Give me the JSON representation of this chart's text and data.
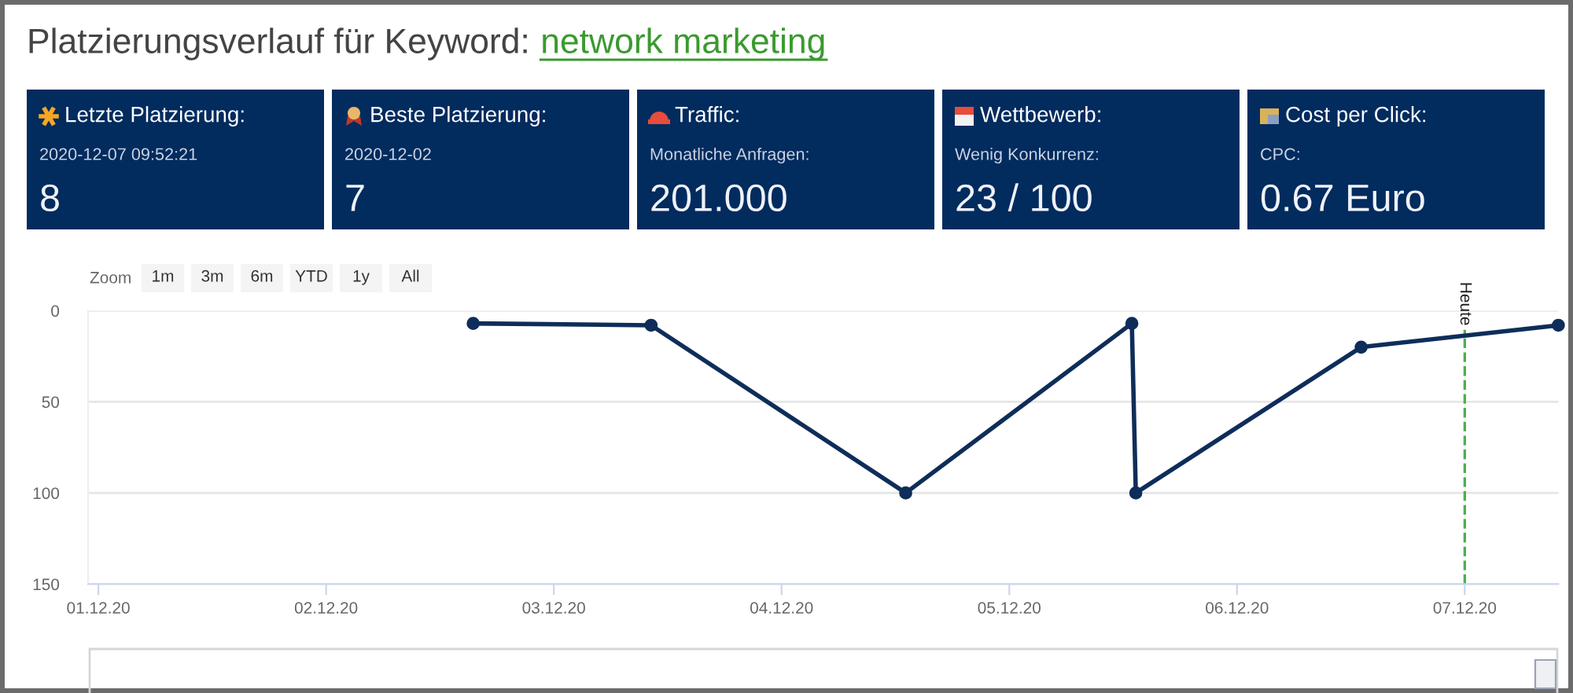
{
  "chart_data": [
    {
      "type": "other",
      "title": "Platzierungsverlauf für Keyword:",
      "subtitle": "network marketing"
    },
    {
      "type": "other",
      "title": "Letzte Platzierung:",
      "subtitle": "2020-12-07 09:52:21",
      "annotations": [
        "8"
      ]
    },
    {
      "type": "other",
      "title": "Beste Platzierung:",
      "subtitle": "2020-12-02",
      "annotations": [
        "7"
      ]
    },
    {
      "type": "other",
      "title": "Traffic:",
      "subtitle": "Monatliche Anfragen:",
      "annotations": [
        "201.000"
      ]
    },
    {
      "type": "other",
      "title": "Wettbewerb:",
      "subtitle": "Wenig Konkurrenz:",
      "annotations": [
        "23 / 100"
      ]
    },
    {
      "type": "other",
      "title": "Cost per Click:",
      "subtitle": "CPC:",
      "annotations": [
        "0.67 Euro"
      ]
    },
    {
      "type": "line",
      "x": [
        "2020-12-02T15:30",
        "2020-12-03T10:15",
        "2020-12-04T13:05",
        "2020-12-05T12:55",
        "2020-12-05T13:20",
        "2020-12-06T13:05",
        "2020-12-07T09:52"
      ],
      "series": [
        {
          "color": "#0f2d5a",
          "values": [
            7,
            8,
            100,
            7,
            100,
            20,
            8
          ]
        }
      ],
      "xlim": [
        "2020-11-30T22:55",
        "2020-12-07T09:52"
      ],
      "xticks": [
        {
          "value": "2020-12-01",
          "label": "01.12.20"
        },
        {
          "value": "2020-12-02",
          "label": "02.12.20"
        },
        {
          "value": "2020-12-03",
          "label": "03.12.20"
        },
        {
          "value": "2020-12-04",
          "label": "04.12.20"
        },
        {
          "value": "2020-12-05",
          "label": "05.12.20"
        },
        {
          "value": "2020-12-06",
          "label": "06.12.20"
        },
        {
          "value": "2020-12-07",
          "label": "07.12.20"
        }
      ],
      "ylim": [
        150,
        0
      ],
      "yticks": [
        0,
        50,
        100,
        150
      ],
      "grid": "y",
      "marker": "circle",
      "line_style": "solid",
      "ref_lines": [
        {
          "axis": "x",
          "value": "2020-12-07",
          "label": "Heute",
          "color": "#4caf50",
          "line_style": "dashed"
        }
      ],
      "annotations": [
        "Zoom",
        "1m",
        "3m",
        "6m",
        "YTD",
        "1y",
        "All"
      ]
    }
  ]
}
